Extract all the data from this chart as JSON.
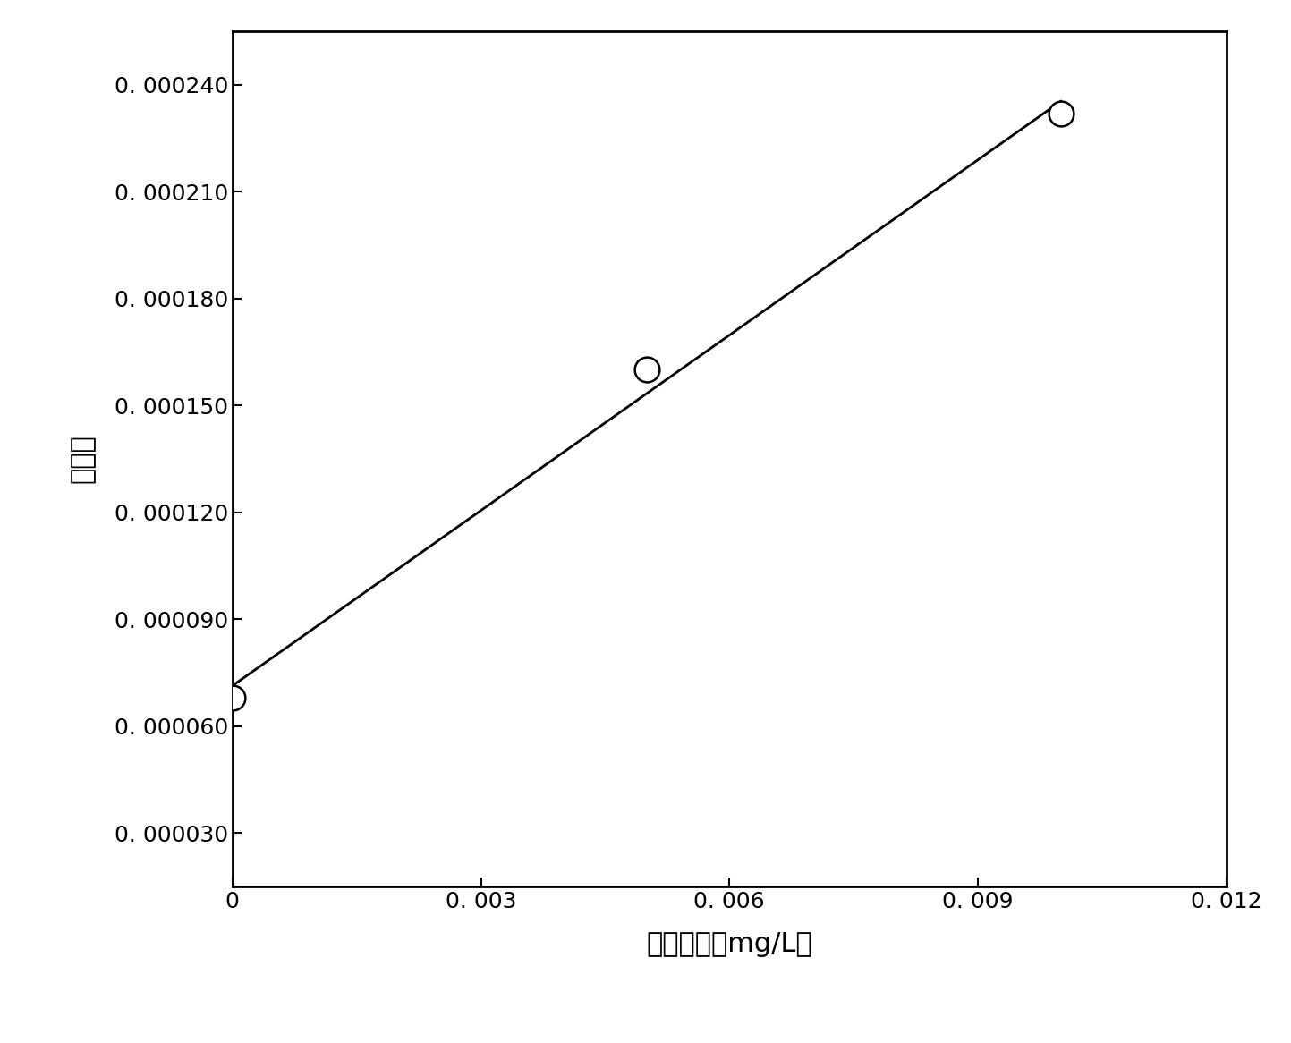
{
  "x_data": [
    0.0,
    0.005,
    0.01
  ],
  "y_data": [
    6.8e-05,
    0.00016,
    0.000232
  ],
  "xlabel": "加入浓度（mg/L）",
  "ylabel": "峰面积",
  "xlim": [
    0,
    0.012
  ],
  "ylim": [
    1.5e-05,
    0.000255
  ],
  "xticks": [
    0,
    0.003,
    0.006,
    0.009,
    0.012
  ],
  "xtick_labels": [
    "0",
    "0. 003",
    "0. 006",
    "0. 009",
    "0. 012"
  ],
  "yticks": [
    3e-05,
    6e-05,
    9e-05,
    0.00012,
    0.00015,
    0.00018,
    0.00021,
    0.00024
  ],
  "ytick_labels": [
    "0. 000030",
    "0. 000060",
    "0. 000090",
    "0. 000120",
    "0. 000150",
    "0. 000180",
    "0. 000210",
    "0. 000240"
  ],
  "marker_size": 20,
  "marker_linewidth": 1.8,
  "line_color": "#000000",
  "marker_color": "#ffffff",
  "marker_edge_color": "#000000",
  "background_color": "#ffffff",
  "font_size_labels": 22,
  "font_size_ticks": 18,
  "spine_linewidth": 2.0
}
